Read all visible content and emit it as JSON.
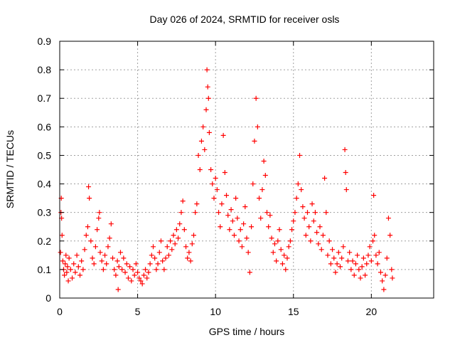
{
  "chart_data": {
    "type": "scatter",
    "title": "Day 026 of 2024, SRMTID for receiver osls",
    "xlabel": "GPS time / hours",
    "ylabel": "SRMTID / TECUs",
    "xlim": [
      0,
      24
    ],
    "ylim": [
      0,
      0.9
    ],
    "xticks": [
      0,
      5,
      10,
      15,
      20
    ],
    "xtick_labels": [
      "0",
      "5",
      "10",
      "15",
      "20"
    ],
    "yticks": [
      0,
      0.1,
      0.2,
      0.3,
      0.4,
      0.5,
      0.6,
      0.7,
      0.8,
      0.9
    ],
    "ytick_labels": [
      "0",
      "0.1",
      "0.2",
      "0.3",
      "0.4",
      "0.5",
      "0.6",
      "0.7",
      "0.8",
      "0.9"
    ],
    "grid": true,
    "marker": "+",
    "series": [
      {
        "name": "SRMTID",
        "color": "#ff0000",
        "points": [
          [
            0.05,
            0.16
          ],
          [
            0.08,
            0.3
          ],
          [
            0.1,
            0.35
          ],
          [
            0.12,
            0.28
          ],
          [
            0.15,
            0.22
          ],
          [
            0.2,
            0.13
          ],
          [
            0.25,
            0.1
          ],
          [
            0.3,
            0.08
          ],
          [
            0.35,
            0.12
          ],
          [
            0.4,
            0.15
          ],
          [
            0.45,
            0.09
          ],
          [
            0.5,
            0.11
          ],
          [
            0.55,
            0.06
          ],
          [
            0.6,
            0.14
          ],
          [
            0.7,
            0.1
          ],
          [
            0.8,
            0.07
          ],
          [
            0.9,
            0.12
          ],
          [
            1.0,
            0.09
          ],
          [
            1.1,
            0.15
          ],
          [
            1.2,
            0.11
          ],
          [
            1.3,
            0.08
          ],
          [
            1.4,
            0.13
          ],
          [
            1.5,
            0.1
          ],
          [
            1.6,
            0.17
          ],
          [
            1.7,
            0.22
          ],
          [
            1.8,
            0.25
          ],
          [
            1.85,
            0.39
          ],
          [
            1.9,
            0.35
          ],
          [
            2.0,
            0.2
          ],
          [
            2.1,
            0.14
          ],
          [
            2.2,
            0.12
          ],
          [
            2.3,
            0.18
          ],
          [
            2.4,
            0.24
          ],
          [
            2.5,
            0.28
          ],
          [
            2.55,
            0.3
          ],
          [
            2.6,
            0.16
          ],
          [
            2.7,
            0.13
          ],
          [
            2.8,
            0.1
          ],
          [
            2.9,
            0.15
          ],
          [
            3.0,
            0.12
          ],
          [
            3.1,
            0.18
          ],
          [
            3.2,
            0.21
          ],
          [
            3.3,
            0.26
          ],
          [
            3.4,
            0.14
          ],
          [
            3.5,
            0.1
          ],
          [
            3.6,
            0.08
          ],
          [
            3.7,
            0.13
          ],
          [
            3.75,
            0.03
          ],
          [
            3.8,
            0.11
          ],
          [
            3.9,
            0.16
          ],
          [
            4.0,
            0.1
          ],
          [
            4.1,
            0.14
          ],
          [
            4.2,
            0.09
          ],
          [
            4.3,
            0.12
          ],
          [
            4.4,
            0.07
          ],
          [
            4.5,
            0.11
          ],
          [
            4.6,
            0.06
          ],
          [
            4.7,
            0.1
          ],
          [
            4.8,
            0.08
          ],
          [
            4.9,
            0.12
          ],
          [
            5.0,
            0.09
          ],
          [
            5.1,
            0.07
          ],
          [
            5.2,
            0.06
          ],
          [
            5.3,
            0.05
          ],
          [
            5.4,
            0.08
          ],
          [
            5.5,
            0.1
          ],
          [
            5.6,
            0.07
          ],
          [
            5.7,
            0.09
          ],
          [
            5.8,
            0.12
          ],
          [
            5.9,
            0.15
          ],
          [
            6.0,
            0.18
          ],
          [
            6.1,
            0.14
          ],
          [
            6.2,
            0.1
          ],
          [
            6.3,
            0.12
          ],
          [
            6.4,
            0.16
          ],
          [
            6.5,
            0.2
          ],
          [
            6.6,
            0.13
          ],
          [
            6.7,
            0.1
          ],
          [
            6.8,
            0.14
          ],
          [
            6.9,
            0.18
          ],
          [
            7.0,
            0.15
          ],
          [
            7.1,
            0.2
          ],
          [
            7.2,
            0.17
          ],
          [
            7.3,
            0.22
          ],
          [
            7.4,
            0.19
          ],
          [
            7.5,
            0.24
          ],
          [
            7.6,
            0.21
          ],
          [
            7.7,
            0.26
          ],
          [
            7.8,
            0.3
          ],
          [
            7.9,
            0.34
          ],
          [
            8.0,
            0.24
          ],
          [
            8.1,
            0.18
          ],
          [
            8.2,
            0.14
          ],
          [
            8.3,
            0.16
          ],
          [
            8.4,
            0.13
          ],
          [
            8.5,
            0.19
          ],
          [
            8.6,
            0.22
          ],
          [
            8.7,
            0.3
          ],
          [
            8.8,
            0.33
          ],
          [
            8.9,
            0.5
          ],
          [
            9.0,
            0.45
          ],
          [
            9.1,
            0.55
          ],
          [
            9.2,
            0.6
          ],
          [
            9.3,
            0.52
          ],
          [
            9.4,
            0.66
          ],
          [
            9.45,
            0.8
          ],
          [
            9.5,
            0.74
          ],
          [
            9.55,
            0.7
          ],
          [
            9.6,
            0.58
          ],
          [
            9.7,
            0.45
          ],
          [
            9.8,
            0.4
          ],
          [
            9.9,
            0.35
          ],
          [
            10.0,
            0.42
          ],
          [
            10.1,
            0.38
          ],
          [
            10.2,
            0.3
          ],
          [
            10.3,
            0.25
          ],
          [
            10.4,
            0.33
          ],
          [
            10.5,
            0.57
          ],
          [
            10.6,
            0.44
          ],
          [
            10.7,
            0.36
          ],
          [
            10.8,
            0.29
          ],
          [
            10.9,
            0.24
          ],
          [
            11.0,
            0.31
          ],
          [
            11.1,
            0.27
          ],
          [
            11.2,
            0.22
          ],
          [
            11.3,
            0.35
          ],
          [
            11.4,
            0.28
          ],
          [
            11.5,
            0.2
          ],
          [
            11.6,
            0.24
          ],
          [
            11.7,
            0.18
          ],
          [
            11.8,
            0.26
          ],
          [
            11.9,
            0.32
          ],
          [
            12.0,
            0.21
          ],
          [
            12.1,
            0.16
          ],
          [
            12.2,
            0.09
          ],
          [
            12.3,
            0.25
          ],
          [
            12.4,
            0.4
          ],
          [
            12.5,
            0.55
          ],
          [
            12.6,
            0.7
          ],
          [
            12.7,
            0.6
          ],
          [
            12.8,
            0.35
          ],
          [
            12.9,
            0.28
          ],
          [
            13.0,
            0.38
          ],
          [
            13.1,
            0.48
          ],
          [
            13.2,
            0.43
          ],
          [
            13.3,
            0.3
          ],
          [
            13.4,
            0.25
          ],
          [
            13.5,
            0.29
          ],
          [
            13.6,
            0.21
          ],
          [
            13.7,
            0.16
          ],
          [
            13.8,
            0.19
          ],
          [
            13.9,
            0.13
          ],
          [
            14.0,
            0.2
          ],
          [
            14.1,
            0.24
          ],
          [
            14.2,
            0.17
          ],
          [
            14.3,
            0.12
          ],
          [
            14.4,
            0.15
          ],
          [
            14.5,
            0.1
          ],
          [
            14.6,
            0.14
          ],
          [
            14.7,
            0.18
          ],
          [
            14.8,
            0.2
          ],
          [
            14.9,
            0.24
          ],
          [
            15.0,
            0.27
          ],
          [
            15.1,
            0.3
          ],
          [
            15.2,
            0.35
          ],
          [
            15.3,
            0.4
          ],
          [
            15.4,
            0.5
          ],
          [
            15.5,
            0.38
          ],
          [
            15.6,
            0.32
          ],
          [
            15.7,
            0.28
          ],
          [
            15.8,
            0.22
          ],
          [
            15.9,
            0.3
          ],
          [
            16.0,
            0.25
          ],
          [
            16.1,
            0.2
          ],
          [
            16.2,
            0.33
          ],
          [
            16.3,
            0.27
          ],
          [
            16.4,
            0.3
          ],
          [
            16.5,
            0.23
          ],
          [
            16.6,
            0.19
          ],
          [
            16.7,
            0.25
          ],
          [
            16.8,
            0.17
          ],
          [
            16.9,
            0.22
          ],
          [
            17.0,
            0.42
          ],
          [
            17.1,
            0.3
          ],
          [
            17.2,
            0.15
          ],
          [
            17.3,
            0.2
          ],
          [
            17.4,
            0.12
          ],
          [
            17.5,
            0.17
          ],
          [
            17.6,
            0.14
          ],
          [
            17.7,
            0.09
          ],
          [
            17.8,
            0.12
          ],
          [
            17.9,
            0.16
          ],
          [
            18.0,
            0.11
          ],
          [
            18.1,
            0.14
          ],
          [
            18.2,
            0.18
          ],
          [
            18.3,
            0.52
          ],
          [
            18.35,
            0.44
          ],
          [
            18.4,
            0.38
          ],
          [
            18.5,
            0.13
          ],
          [
            18.6,
            0.16
          ],
          [
            18.7,
            0.1
          ],
          [
            18.8,
            0.13
          ],
          [
            18.9,
            0.08
          ],
          [
            19.0,
            0.12
          ],
          [
            19.1,
            0.15
          ],
          [
            19.2,
            0.1
          ],
          [
            19.3,
            0.07
          ],
          [
            19.4,
            0.11
          ],
          [
            19.5,
            0.14
          ],
          [
            19.6,
            0.08
          ],
          [
            19.7,
            0.12
          ],
          [
            19.8,
            0.15
          ],
          [
            19.9,
            0.18
          ],
          [
            20.0,
            0.13
          ],
          [
            20.1,
            0.2
          ],
          [
            20.15,
            0.36
          ],
          [
            20.2,
            0.22
          ],
          [
            20.3,
            0.15
          ],
          [
            20.4,
            0.12
          ],
          [
            20.5,
            0.16
          ],
          [
            20.6,
            0.09
          ],
          [
            20.7,
            0.06
          ],
          [
            20.8,
            0.03
          ],
          [
            20.9,
            0.08
          ],
          [
            21.0,
            0.14
          ],
          [
            21.1,
            0.28
          ],
          [
            21.2,
            0.22
          ],
          [
            21.3,
            0.1
          ],
          [
            21.35,
            0.07
          ]
        ]
      }
    ]
  }
}
